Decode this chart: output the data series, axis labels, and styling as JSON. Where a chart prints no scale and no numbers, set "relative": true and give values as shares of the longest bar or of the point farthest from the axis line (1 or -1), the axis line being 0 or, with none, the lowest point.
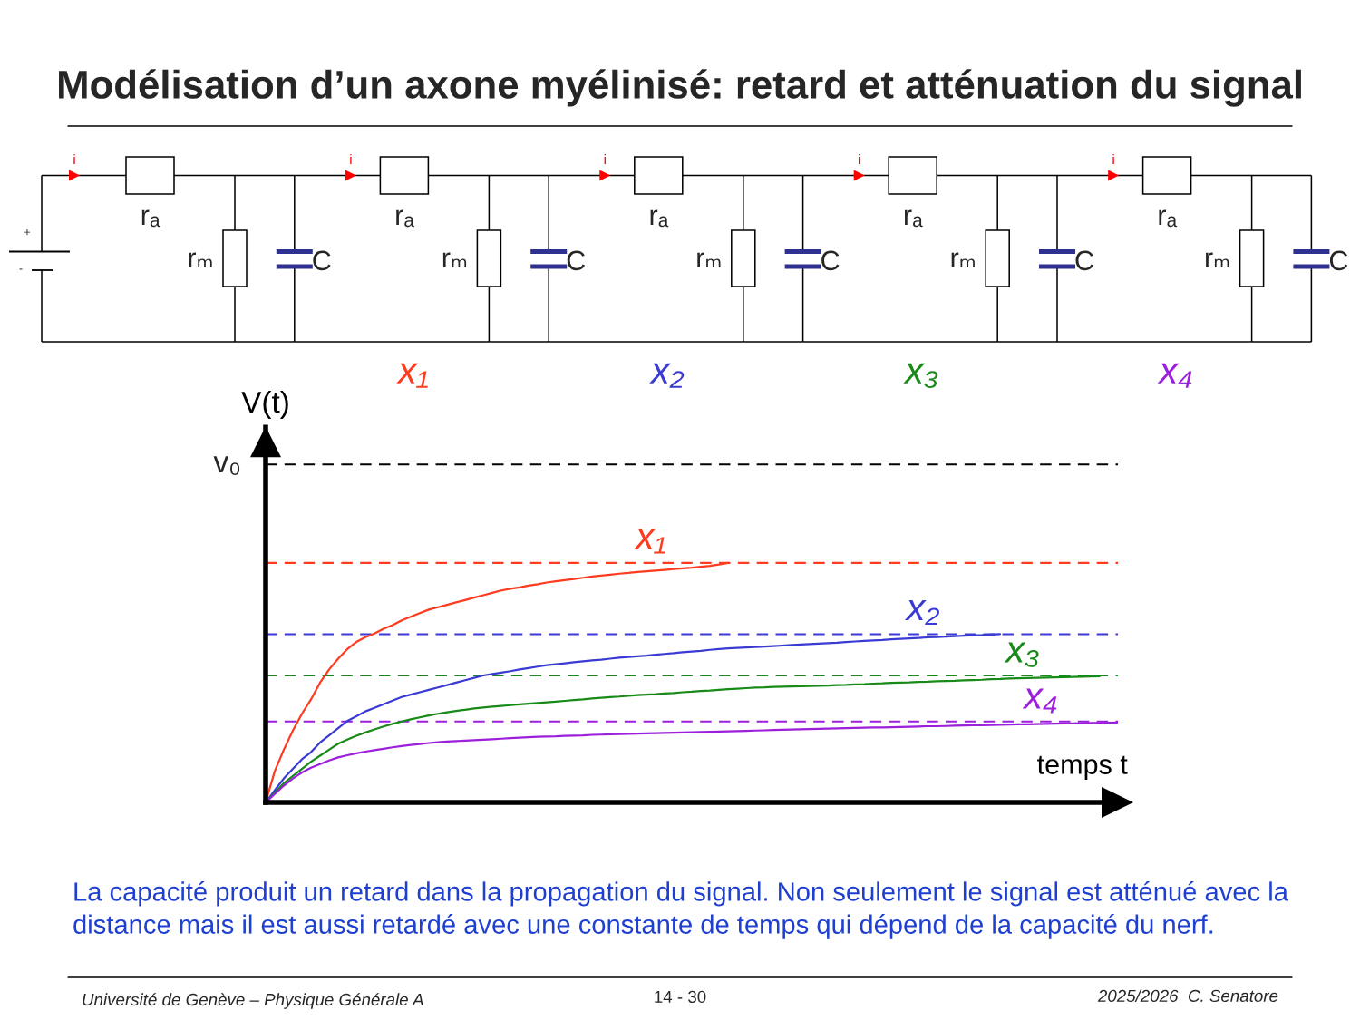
{
  "chart_data": [
    {
      "type": "other",
      "title": "Modélisation d’un axone myélinisé: retard et atténuation du signal",
      "annotations": [
        "+",
        "-",
        "i",
        "rₐ",
        "rₘ",
        "C",
        "i",
        "rₐ",
        "rₘ",
        "C",
        "x₁",
        "i",
        "rₐ",
        "rₘ",
        "C",
        "x₂",
        "i",
        "rₐ",
        "rₘ",
        "C",
        "x₃",
        "i",
        "rₐ",
        "rₘ",
        "C",
        "x₄"
      ]
    },
    {
      "type": "line",
      "relative": true,
      "xlabel": "temps t",
      "ylabel": "V(t)",
      "categories": [
        null,
        null,
        null,
        null,
        null,
        null,
        null,
        null,
        null,
        null,
        null,
        null,
        null,
        null,
        null,
        null,
        null,
        null,
        null,
        null,
        null,
        null,
        null,
        null,
        null,
        null,
        null,
        null,
        null,
        null,
        null,
        null,
        null,
        null,
        null,
        null,
        null,
        null,
        null,
        null,
        null,
        null,
        null,
        null,
        null,
        null,
        null,
        null,
        null,
        null,
        null,
        null,
        null,
        null,
        null,
        null,
        null,
        null,
        null,
        null,
        null,
        null,
        null,
        null,
        null,
        null,
        null,
        null,
        null,
        null,
        null,
        null,
        null,
        null,
        null,
        null,
        null,
        null,
        null,
        null,
        null,
        null,
        null,
        null,
        null,
        null,
        null,
        null,
        null,
        null,
        null,
        null,
        null,
        null,
        null
      ],
      "series": [
        {
          "name": "x₁",
          "color": "#ff3b1f",
          "values": [
            0,
            0.13,
            0.22,
            0.3,
            0.37,
            0.43,
            0.5,
            0.555,
            0.6,
            0.64,
            0.67,
            0.69,
            0.705,
            0.725,
            0.74,
            0.76,
            0.775,
            0.79,
            0.805,
            0.815,
            0.825,
            0.835,
            0.845,
            0.855,
            0.865,
            0.875,
            0.885,
            0.892,
            0.898,
            0.905,
            0.911,
            0.918,
            0.923,
            0.928,
            0.933,
            0.938,
            0.943,
            0.947,
            0.951,
            0.955,
            0.958,
            0.962,
            0.965,
            0.968,
            0.971,
            0.974,
            0.977,
            0.98,
            0.984,
            0.988,
            0.993,
            1.0,
            null,
            null,
            null,
            null,
            null,
            null,
            null,
            null,
            null,
            null,
            null,
            null,
            null,
            null,
            null,
            null,
            null,
            null,
            null,
            null,
            null,
            null,
            null,
            null,
            null,
            null,
            null,
            null,
            null,
            null,
            null,
            null,
            null,
            null,
            null,
            null,
            null,
            null,
            null,
            null,
            null,
            null,
            null
          ]
        },
        {
          "name": "x₂",
          "color": "#3a3ad4",
          "values": [
            0,
            0.05,
            0.1,
            0.14,
            0.18,
            0.21,
            0.25,
            0.28,
            0.31,
            0.34,
            0.36,
            0.38,
            0.395,
            0.41,
            0.425,
            0.44,
            0.45,
            0.46,
            0.47,
            0.48,
            0.49,
            0.5,
            0.51,
            0.52,
            0.53,
            0.536,
            0.542,
            0.548,
            0.555,
            0.561,
            0.567,
            0.573,
            0.577,
            0.581,
            0.585,
            0.589,
            0.593,
            0.596,
            0.6,
            0.604,
            0.607,
            0.61,
            0.613,
            0.617,
            0.62,
            0.623,
            0.627,
            0.63,
            0.633,
            0.637,
            0.64,
            0.643,
            0.645,
            0.647,
            0.649,
            0.651,
            0.653,
            0.655,
            0.657,
            0.659,
            0.661,
            0.663,
            0.665,
            0.667,
            0.67,
            0.672,
            0.674,
            0.676,
            0.678,
            0.681,
            0.683,
            0.685,
            0.687,
            0.689,
            0.69,
            0.692,
            0.694,
            0.696,
            0.698,
            0.699,
            0.701,
            0.703,
            null,
            null,
            null,
            null,
            null,
            null,
            null,
            null,
            null,
            null,
            null,
            null,
            null
          ]
        },
        {
          "name": "x₃",
          "color": "#178a17",
          "values": [
            0,
            0.04,
            0.08,
            0.11,
            0.14,
            0.17,
            0.195,
            0.22,
            0.245,
            0.262,
            0.278,
            0.292,
            0.305,
            0.317,
            0.328,
            0.338,
            0.347,
            0.355,
            0.363,
            0.37,
            0.376,
            0.382,
            0.387,
            0.392,
            0.396,
            0.4,
            0.403,
            0.406,
            0.409,
            0.412,
            0.415,
            0.418,
            0.421,
            0.424,
            0.427,
            0.43,
            0.434,
            0.437,
            0.44,
            0.442,
            0.445,
            0.448,
            0.45,
            0.452,
            0.455,
            0.457,
            0.46,
            0.462,
            0.465,
            0.467,
            0.47,
            0.473,
            0.475,
            0.477,
            0.479,
            0.48,
            0.482,
            0.483,
            0.484,
            0.485,
            0.486,
            0.487,
            0.488,
            0.49,
            0.491,
            0.493,
            0.494,
            0.496,
            0.497,
            0.499,
            0.5,
            0.501,
            0.503,
            0.504,
            0.506,
            0.507,
            0.508,
            0.51,
            0.511,
            0.512,
            0.514,
            0.515,
            0.517,
            0.518,
            0.519,
            0.52,
            0.521,
            0.522,
            0.523,
            0.524,
            0.525,
            0.526,
            0.527,
            null,
            null
          ]
        },
        {
          "name": "x₄",
          "color": "#9b1fdb",
          "values": [
            0,
            0.035,
            0.07,
            0.1,
            0.125,
            0.145,
            0.16,
            0.175,
            0.188,
            0.197,
            0.205,
            0.212,
            0.218,
            0.224,
            0.23,
            0.235,
            0.24,
            0.244,
            0.248,
            0.251,
            0.254,
            0.256,
            0.258,
            0.26,
            0.262,
            0.264,
            0.266,
            0.268,
            0.27,
            0.272,
            0.274,
            0.275,
            0.276,
            0.278,
            0.279,
            0.28,
            0.282,
            0.283,
            0.284,
            0.285,
            0.286,
            0.287,
            0.288,
            0.289,
            0.29,
            0.291,
            0.292,
            0.293,
            0.294,
            0.295,
            0.296,
            0.297,
            0.298,
            0.299,
            0.3,
            0.301,
            0.302,
            0.303,
            0.304,
            0.305,
            0.306,
            0.307,
            0.308,
            0.309,
            0.31,
            0.311,
            0.312,
            0.313,
            0.313,
            0.314,
            0.315,
            0.316,
            0.317,
            0.318,
            0.318,
            0.319,
            0.32,
            0.321,
            0.322,
            0.322,
            0.323,
            0.324,
            0.325,
            0.326,
            0.326,
            0.327,
            0.328,
            0.329,
            0.33,
            0.33,
            0.331,
            0.332,
            0.332,
            0.333,
            0.334
          ]
        }
      ],
      "ref_lines": [
        {
          "axis": "y",
          "value": 1.411,
          "label": "v₀",
          "color": "#000000",
          "line_style": "dashed"
        },
        {
          "axis": "y",
          "value": 1.0,
          "color": "#ff3b1f",
          "line_style": "dashed"
        },
        {
          "axis": "y",
          "value": 0.702,
          "color": "#3a3ad4",
          "line_style": "dashed"
        },
        {
          "axis": "y",
          "value": 0.53,
          "color": "#178a17",
          "line_style": "dashed"
        },
        {
          "axis": "y",
          "value": 0.338,
          "color": "#9b1fdb",
          "line_style": "dashed"
        }
      ],
      "annotations": [
        "La capacité produit un retard dans la propagation du signal. Non seulement le signal est atténué avec la distance mais il est aussi retardé avec une constante de temps qui dépend de la capacité du nerf.",
        "Université de Genève – Physique Générale A",
        "14 - 30",
        "2025/2026  C. Senatore"
      ]
    }
  ]
}
